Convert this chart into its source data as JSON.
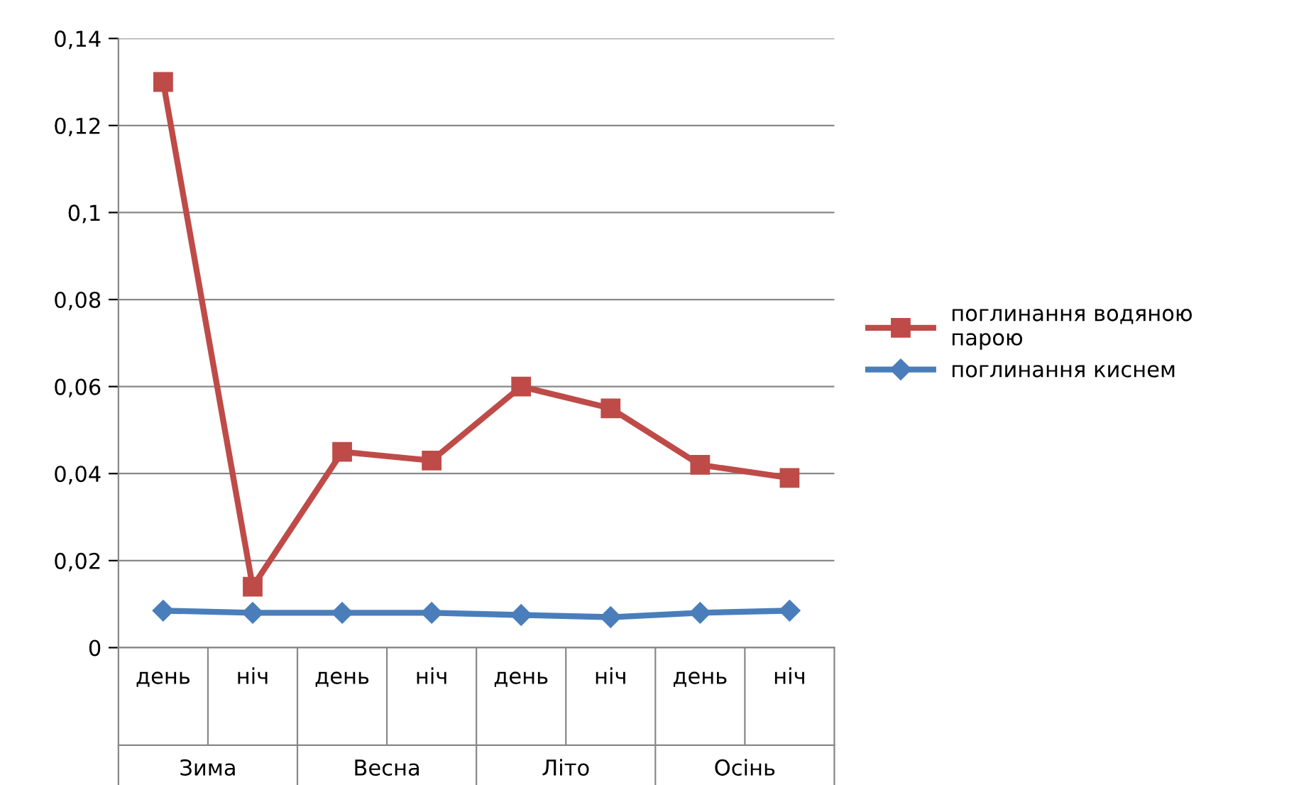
{
  "chart_data": {
    "type": "line",
    "categories": [
      "день",
      "ніч",
      "день",
      "ніч",
      "день",
      "ніч",
      "день",
      "ніч"
    ],
    "annotations": [
      "Зима",
      "Весна",
      "Літо",
      "Осінь"
    ],
    "series": [
      {
        "name": "поглинання водяною\nпарою",
        "color": "#be4b48",
        "marker": "square",
        "values": [
          0.13,
          0.014,
          0.045,
          0.043,
          0.06,
          0.055,
          0.042,
          0.039
        ]
      },
      {
        "name": "поглинання киснем",
        "color": "#4a7ebb",
        "marker": "diamond",
        "values": [
          0.0085,
          0.008,
          0.008,
          0.008,
          0.0075,
          0.007,
          0.008,
          0.0085
        ]
      }
    ],
    "ylim": [
      0,
      0.14
    ],
    "yticks": [
      {
        "value": 0,
        "label": "0"
      },
      {
        "value": 0.02,
        "label": "0,02"
      },
      {
        "value": 0.04,
        "label": "0,04"
      },
      {
        "value": 0.06,
        "label": "0,06"
      },
      {
        "value": 0.08,
        "label": "0,08"
      },
      {
        "value": 0.1,
        "label": "0,1"
      },
      {
        "value": 0.12,
        "label": "0,12"
      },
      {
        "value": 0.14,
        "label": "0,14"
      }
    ],
    "grid": "y",
    "legend": "right",
    "line_style": "solid"
  }
}
